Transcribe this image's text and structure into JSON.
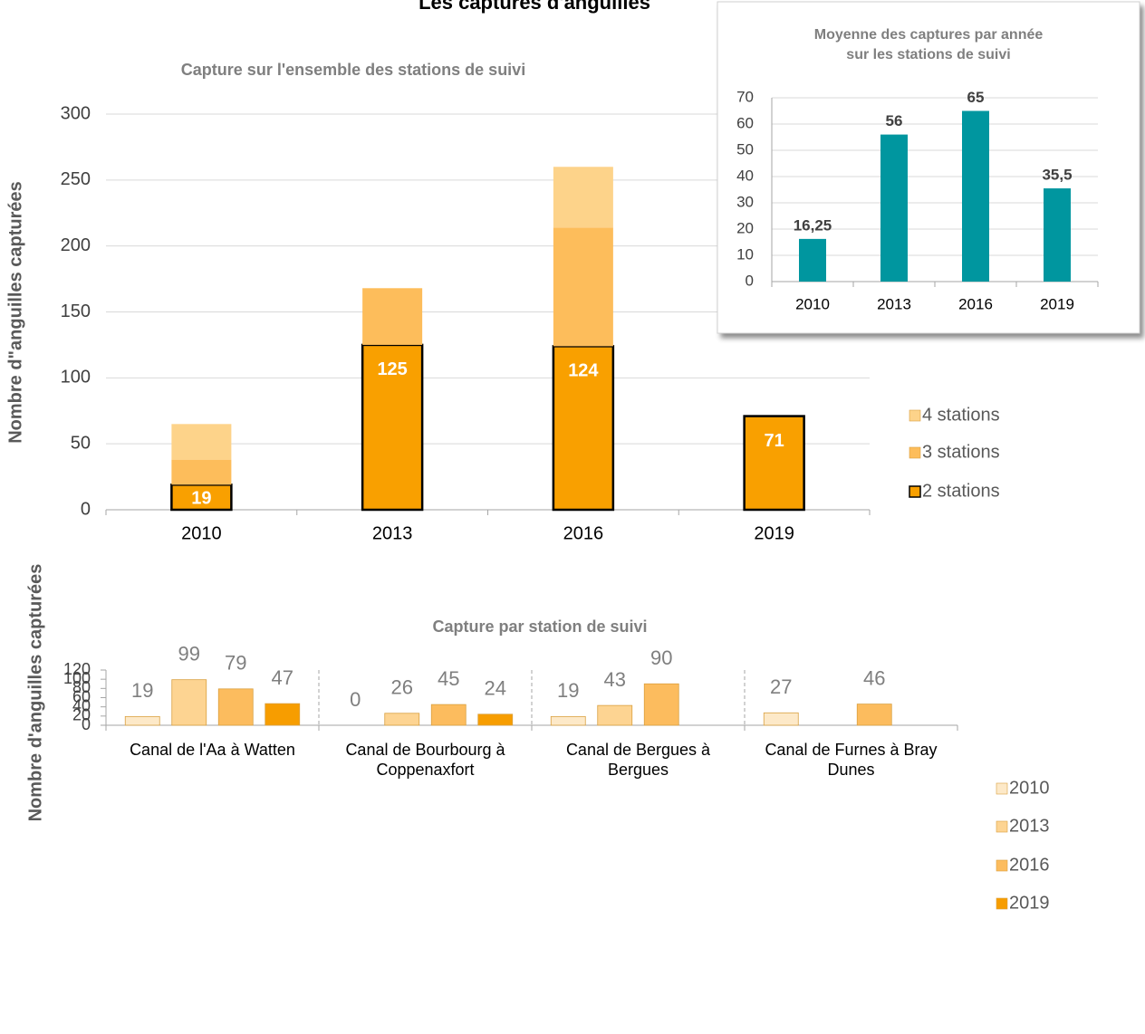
{
  "title": "Les captures d'anguilles",
  "chart_data": [
    {
      "type": "stacked_bar",
      "title": "Capture sur l'ensemble des stations de suivi",
      "y_label": "Nombre d\"anguilles capturées",
      "categories": [
        "2010",
        "2013",
        "2016",
        "2019"
      ],
      "series": [
        {
          "name": "2 stations",
          "color": "#f9a000",
          "values": [
            19,
            125,
            124,
            71
          ],
          "data_labels": true,
          "outline": "#000000"
        },
        {
          "name": "3 stations",
          "color": "#fdbd5b",
          "values": [
            19,
            43,
            90,
            null
          ]
        },
        {
          "name": "4 stations",
          "color": "#fdd38a",
          "values": [
            27,
            null,
            46,
            null
          ]
        }
      ],
      "ylim": [
        0,
        300
      ],
      "yticks": [
        0,
        50,
        100,
        150,
        200,
        250,
        300
      ],
      "grid": true,
      "legend": "right"
    },
    {
      "type": "bar",
      "title": [
        "Moyenne des captures par année",
        "sur les stations de suivi"
      ],
      "categories": [
        "2010",
        "2013",
        "2016",
        "2019"
      ],
      "values": [
        16.25,
        56,
        65,
        35.5
      ],
      "value_labels": [
        "16,25",
        "56",
        "65",
        "35,5"
      ],
      "color": "#00969f",
      "ylim": [
        0,
        70
      ],
      "yticks": [
        0,
        10,
        20,
        30,
        40,
        50,
        60,
        70
      ],
      "grid": true
    },
    {
      "type": "grouped_bar",
      "title": "Capture par station de suivi",
      "y_label": "Nombre d'anguilles capturées",
      "categories": [
        [
          "Canal de l'Aa à Watten"
        ],
        [
          "Canal de Bourbourg à",
          "Coppenaxfort"
        ],
        [
          "Canal de Bergues à",
          "Bergues"
        ],
        [
          "Canal de Furnes à Bray",
          "Dunes"
        ]
      ],
      "series": [
        {
          "name": "2010",
          "color": "#fde9c8",
          "values": [
            19,
            0,
            19,
            27
          ]
        },
        {
          "name": "2013",
          "color": "#fdd492",
          "values": [
            99,
            26,
            43,
            null
          ]
        },
        {
          "name": "2016",
          "color": "#fcbc5e",
          "values": [
            79,
            45,
            90,
            46
          ]
        },
        {
          "name": "2019",
          "color": "#f79d00",
          "values": [
            47,
            24,
            null,
            null
          ]
        }
      ],
      "ylim": [
        0,
        120
      ],
      "yticks": [
        0,
        20,
        40,
        60,
        80,
        100,
        120
      ],
      "grid": false,
      "legend": "right"
    }
  ]
}
